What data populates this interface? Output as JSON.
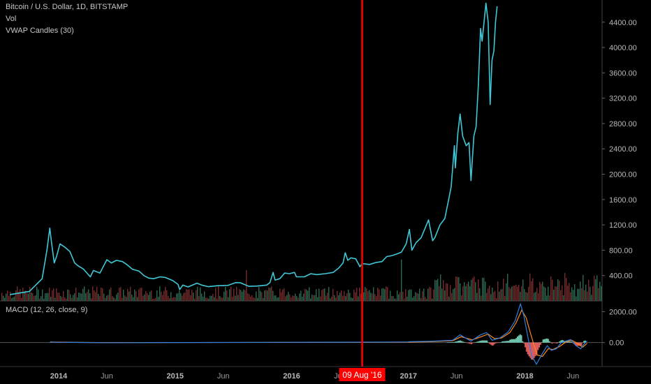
{
  "legend": {
    "symbol": "Bitcoin / U.S. Dollar, 1D, BITSTAMP",
    "vol": "Vol",
    "vwap": "VWAP Candles (30)",
    "macd": "MACD (12, 26, close, 9)"
  },
  "cursor": {
    "date_label": "09 Aug '16",
    "color": "#ff0000"
  },
  "colors": {
    "price_line": "#3fc8d8",
    "vol_up": "#3e8a6a",
    "vol_down": "#9a3a3a",
    "macd_line": "#2f7fe0",
    "signal_line": "#ff8a1e",
    "hist_up": "#7fe3c8",
    "hist_down": "#ff6a6a",
    "axis_text": "#b8b8b8",
    "divider": "#444444"
  },
  "chart_data": [
    {
      "type": "line",
      "title": "Bitcoin / U.S. Dollar, 1D, BITSTAMP",
      "y_ticks": [
        "400.00",
        "800.00",
        "1200.00",
        "1600.00",
        "2000.00",
        "2400.00",
        "2800.00",
        "3200.00",
        "3600.00",
        "4000.00",
        "4400.00"
      ],
      "ylim": [
        0,
        4750
      ],
      "x_ticks": [
        {
          "label": "2014",
          "date": "2014-01-01",
          "year": true
        },
        {
          "label": "Jun",
          "date": "2014-06-01",
          "year": false
        },
        {
          "label": "2015",
          "date": "2015-01-01",
          "year": true
        },
        {
          "label": "Jun",
          "date": "2015-06-01",
          "year": false
        },
        {
          "label": "2016",
          "date": "2016-01-01",
          "year": true
        },
        {
          "label": "Jun",
          "date": "2016-06-01",
          "year": false
        },
        {
          "label": "2017",
          "date": "2017-01-01",
          "year": true
        },
        {
          "label": "Jun",
          "date": "2017-06-01",
          "year": false
        },
        {
          "label": "2018",
          "date": "2018-01-01",
          "year": true
        },
        {
          "label": "Jun",
          "date": "2018-06-01",
          "year": false
        }
      ],
      "series": [
        {
          "name": "VWAP Candles (30)",
          "points": [
            [
              "2013-08-01",
              100
            ],
            [
              "2013-10-01",
              150
            ],
            [
              "2013-11-10",
              350
            ],
            [
              "2013-11-25",
              800
            ],
            [
              "2013-12-04",
              1150
            ],
            [
              "2013-12-10",
              900
            ],
            [
              "2013-12-18",
              600
            ],
            [
              "2013-12-25",
              700
            ],
            [
              "2014-01-05",
              900
            ],
            [
              "2014-01-20",
              850
            ],
            [
              "2014-02-05",
              780
            ],
            [
              "2014-02-20",
              600
            ],
            [
              "2014-03-01",
              560
            ],
            [
              "2014-03-20",
              500
            ],
            [
              "2014-04-10",
              380
            ],
            [
              "2014-04-20",
              480
            ],
            [
              "2014-05-10",
              440
            ],
            [
              "2014-06-01",
              650
            ],
            [
              "2014-06-15",
              600
            ],
            [
              "2014-07-01",
              640
            ],
            [
              "2014-07-20",
              620
            ],
            [
              "2014-08-01",
              580
            ],
            [
              "2014-08-20",
              500
            ],
            [
              "2014-09-10",
              470
            ],
            [
              "2014-09-25",
              400
            ],
            [
              "2014-10-10",
              360
            ],
            [
              "2014-10-25",
              350
            ],
            [
              "2014-11-15",
              380
            ],
            [
              "2014-12-01",
              370
            ],
            [
              "2014-12-25",
              320
            ],
            [
              "2015-01-10",
              260
            ],
            [
              "2015-01-15",
              180
            ],
            [
              "2015-01-25",
              250
            ],
            [
              "2015-02-10",
              220
            ],
            [
              "2015-03-10",
              280
            ],
            [
              "2015-03-25",
              250
            ],
            [
              "2015-04-15",
              225
            ],
            [
              "2015-05-15",
              240
            ],
            [
              "2015-06-15",
              245
            ],
            [
              "2015-07-10",
              290
            ],
            [
              "2015-07-25",
              285
            ],
            [
              "2015-08-20",
              230
            ],
            [
              "2015-09-15",
              235
            ],
            [
              "2015-10-15",
              250
            ],
            [
              "2015-10-25",
              290
            ],
            [
              "2015-11-04",
              450
            ],
            [
              "2015-11-10",
              330
            ],
            [
              "2015-11-25",
              350
            ],
            [
              "2015-12-10",
              440
            ],
            [
              "2015-12-25",
              430
            ],
            [
              "2016-01-10",
              450
            ],
            [
              "2016-01-16",
              380
            ],
            [
              "2016-02-10",
              380
            ],
            [
              "2016-03-01",
              430
            ],
            [
              "2016-03-20",
              415
            ],
            [
              "2016-04-15",
              430
            ],
            [
              "2016-05-10",
              450
            ],
            [
              "2016-05-28",
              520
            ],
            [
              "2016-06-10",
              600
            ],
            [
              "2016-06-17",
              760
            ],
            [
              "2016-06-25",
              640
            ],
            [
              "2016-07-05",
              680
            ],
            [
              "2016-07-20",
              665
            ],
            [
              "2016-08-02",
              540
            ],
            [
              "2016-08-09",
              590
            ],
            [
              "2016-09-01",
              575
            ],
            [
              "2016-09-20",
              605
            ],
            [
              "2016-10-10",
              620
            ],
            [
              "2016-10-25",
              700
            ],
            [
              "2016-11-10",
              715
            ],
            [
              "2016-11-25",
              740
            ],
            [
              "2016-12-10",
              770
            ],
            [
              "2016-12-25",
              900
            ],
            [
              "2017-01-04",
              1130
            ],
            [
              "2017-01-12",
              800
            ],
            [
              "2017-01-25",
              920
            ],
            [
              "2017-02-10",
              1000
            ],
            [
              "2017-02-25",
              1180
            ],
            [
              "2017-03-05",
              1280
            ],
            [
              "2017-03-18",
              950
            ],
            [
              "2017-03-25",
              1000
            ],
            [
              "2017-04-10",
              1200
            ],
            [
              "2017-04-25",
              1300
            ],
            [
              "2017-05-05",
              1550
            ],
            [
              "2017-05-15",
              1800
            ],
            [
              "2017-05-25",
              2450
            ],
            [
              "2017-05-28",
              2100
            ],
            [
              "2017-06-05",
              2650
            ],
            [
              "2017-06-12",
              2950
            ],
            [
              "2017-06-20",
              2600
            ],
            [
              "2017-07-01",
              2450
            ],
            [
              "2017-07-10",
              2500
            ],
            [
              "2017-07-16",
              1900
            ],
            [
              "2017-07-25",
              2600
            ],
            [
              "2017-08-01",
              2750
            ],
            [
              "2017-08-08",
              3400
            ],
            [
              "2017-08-15",
              4300
            ],
            [
              "2017-08-20",
              4100
            ],
            [
              "2017-09-01",
              4700
            ],
            [
              "2017-09-08",
              4400
            ],
            [
              "2017-09-14",
              3100
            ],
            [
              "2017-09-20",
              3800
            ],
            [
              "2017-09-26",
              3950
            ],
            [
              "2017-10-01",
              4400
            ],
            [
              "2017-10-06",
              4650
            ]
          ]
        }
      ]
    },
    {
      "type": "bar",
      "title": "Vol",
      "note": "daily volume bars"
    },
    {
      "type": "line",
      "title": "MACD (12, 26, close, 9)",
      "y_ticks": [
        "2000.00",
        "0.00"
      ],
      "ylim": [
        -1550,
        2650
      ],
      "series": [
        {
          "name": "MACD",
          "points": [
            [
              "2013-12-05",
              50
            ],
            [
              "2013-12-20",
              20
            ],
            [
              "2014-06-01",
              -5
            ],
            [
              "2016-06-20",
              25
            ],
            [
              "2016-12-30",
              40
            ],
            [
              "2017-01-05",
              60
            ],
            [
              "2017-03-05",
              80
            ],
            [
              "2017-05-20",
              150
            ],
            [
              "2017-06-12",
              500
            ],
            [
              "2017-07-16",
              100
            ],
            [
              "2017-08-15",
              500
            ],
            [
              "2017-09-03",
              650
            ],
            [
              "2017-09-20",
              150
            ],
            [
              "2017-10-15",
              300
            ],
            [
              "2017-11-10",
              700
            ],
            [
              "2017-12-01",
              1400
            ],
            [
              "2017-12-18",
              2500
            ],
            [
              "2017-12-28",
              1800
            ],
            [
              "2018-01-10",
              400
            ],
            [
              "2018-01-22",
              -800
            ],
            [
              "2018-02-06",
              -1400
            ],
            [
              "2018-02-25",
              -700
            ],
            [
              "2018-03-12",
              -200
            ],
            [
              "2018-03-25",
              -500
            ],
            [
              "2018-04-10",
              -400
            ],
            [
              "2018-04-25",
              0
            ],
            [
              "2018-05-10",
              100
            ],
            [
              "2018-05-25",
              200
            ],
            [
              "2018-06-10",
              -200
            ],
            [
              "2018-06-25",
              -400
            ],
            [
              "2018-07-05",
              -100
            ],
            [
              "2018-07-15",
              100
            ]
          ]
        },
        {
          "name": "Signal",
          "points": [
            [
              "2013-12-05",
              30
            ],
            [
              "2014-01-01",
              25
            ],
            [
              "2014-06-01",
              0
            ],
            [
              "2016-06-20",
              15
            ],
            [
              "2016-12-30",
              30
            ],
            [
              "2017-03-05",
              60
            ],
            [
              "2017-05-20",
              120
            ],
            [
              "2017-06-15",
              380
            ],
            [
              "2017-07-20",
              180
            ],
            [
              "2017-08-20",
              400
            ],
            [
              "2017-09-08",
              550
            ],
            [
              "2017-09-28",
              250
            ],
            [
              "2017-10-20",
              300
            ],
            [
              "2017-11-15",
              650
            ],
            [
              "2017-12-05",
              1300
            ],
            [
              "2017-12-22",
              2100
            ],
            [
              "2018-01-05",
              1600
            ],
            [
              "2018-01-20",
              500
            ],
            [
              "2018-02-08",
              -800
            ],
            [
              "2018-02-25",
              -900
            ],
            [
              "2018-03-15",
              -400
            ],
            [
              "2018-03-30",
              -450
            ],
            [
              "2018-04-20",
              -250
            ],
            [
              "2018-05-10",
              50
            ],
            [
              "2018-05-28",
              150
            ],
            [
              "2018-06-15",
              -50
            ],
            [
              "2018-07-01",
              -300
            ],
            [
              "2018-07-15",
              -50
            ]
          ]
        }
      ]
    }
  ]
}
